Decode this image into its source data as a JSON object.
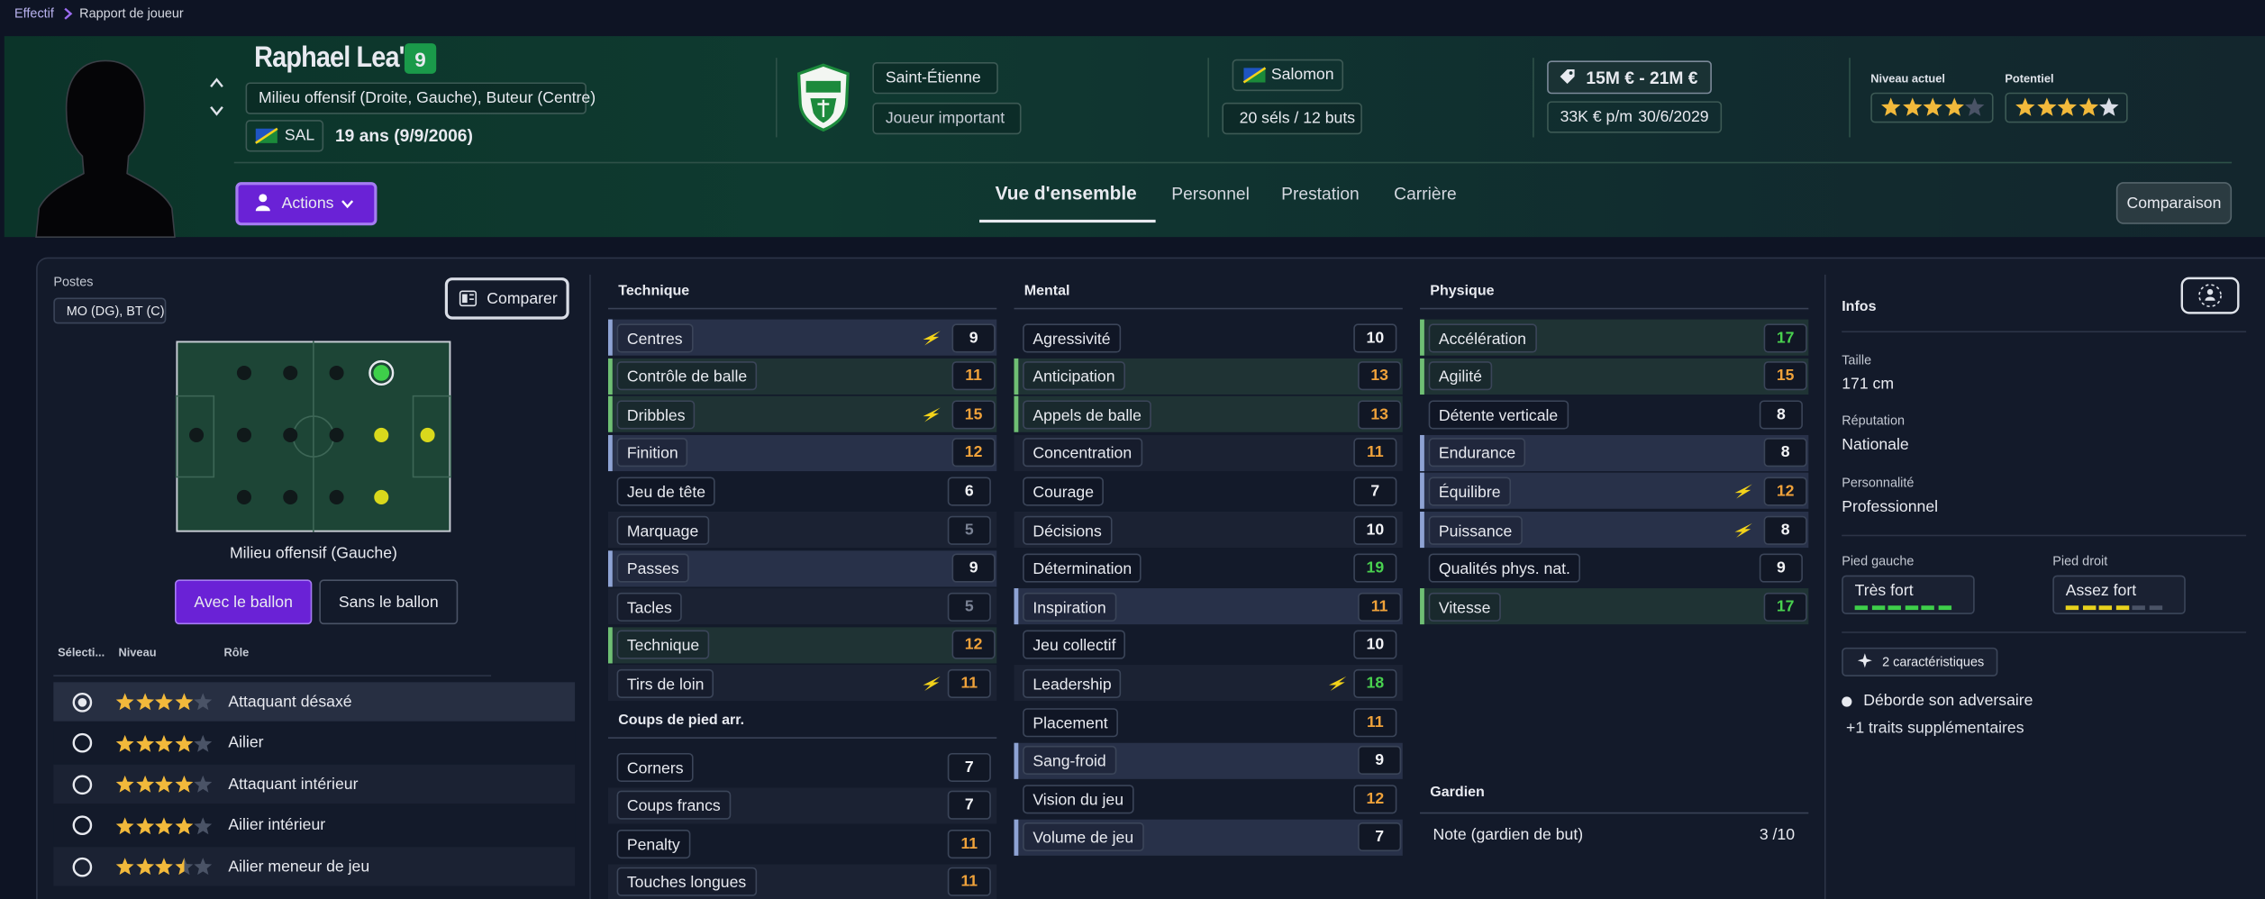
{
  "breadcrumb": [
    "Effectif",
    "Rapport de joueur"
  ],
  "header": {
    "name": "Raphael Lea'i",
    "number": 9,
    "positions": "Milieu offensif (Droite, Gauche), Buteur (Centre)",
    "nationality_code": "SAL",
    "age": "19 ans (9/9/2006)",
    "club": "Saint-Étienne",
    "squad_status": "Joueur important",
    "country": "Salomon",
    "international": "20 séls / 12 buts",
    "value": "15M € - 21M €",
    "wage": "33K € p/m",
    "contract": "30/6/2029",
    "current_level_label": "Niveau actuel",
    "current_level": 4,
    "potential_label": "Potentiel",
    "potential": 4,
    "potential_max": 5
  },
  "actions": "Actions",
  "tabs": [
    "Vue d'ensemble",
    "Personnel",
    "Prestation",
    "Carrière"
  ],
  "comparison": "Comparaison",
  "positions_panel": {
    "label": "Postes",
    "code": "MO (DG), BT (C)",
    "compare": "Comparer",
    "pitch_caption": "Milieu offensif (Gauche)",
    "toggles": [
      "Avec le ballon",
      "Sans le ballon"
    ],
    "columns": [
      "Sélecti...",
      "Niveau",
      "Rôle"
    ],
    "roles": [
      {
        "name": "Attaquant désaxé",
        "stars": 4,
        "selected": true
      },
      {
        "name": "Ailier",
        "stars": 4,
        "selected": false
      },
      {
        "name": "Attaquant intérieur",
        "stars": 4,
        "selected": false
      },
      {
        "name": "Ailier intérieur",
        "stars": 4,
        "selected": false
      },
      {
        "name": "Ailier meneur de jeu",
        "stars": 3.5,
        "selected": false
      }
    ]
  },
  "attributes": [
    {
      "title": "Technique",
      "items": [
        {
          "name": "Centres",
          "value": 9,
          "highlight": "blue",
          "flair": true
        },
        {
          "name": "Contrôle de balle",
          "value": 11,
          "highlight": "green",
          "flair": false
        },
        {
          "name": "Dribbles",
          "value": 15,
          "highlight": "green",
          "flair": true
        },
        {
          "name": "Finition",
          "value": 12,
          "highlight": "blue",
          "flair": false
        },
        {
          "name": "Jeu de tête",
          "value": 6,
          "highlight": "none",
          "flair": false
        },
        {
          "name": "Marquage",
          "value": 5,
          "highlight": "none",
          "flair": false
        },
        {
          "name": "Passes",
          "value": 9,
          "highlight": "blue",
          "flair": false
        },
        {
          "name": "Tacles",
          "value": 5,
          "highlight": "none",
          "flair": false
        },
        {
          "name": "Technique",
          "value": 12,
          "highlight": "green",
          "flair": false
        },
        {
          "name": "Tirs de loin",
          "value": 11,
          "highlight": "none",
          "flair": true
        }
      ]
    },
    {
      "title": "Coups de pied arr.",
      "items": [
        {
          "name": "Corners",
          "value": 7,
          "highlight": "none",
          "flair": false
        },
        {
          "name": "Coups francs",
          "value": 7,
          "highlight": "none",
          "flair": false
        },
        {
          "name": "Penalty",
          "value": 11,
          "highlight": "none",
          "flair": false
        },
        {
          "name": "Touches longues",
          "value": 11,
          "highlight": "none",
          "flair": false
        }
      ]
    },
    {
      "title": "Mental",
      "items": [
        {
          "name": "Agressivité",
          "value": 10,
          "highlight": "none",
          "flair": false
        },
        {
          "name": "Anticipation",
          "value": 13,
          "highlight": "green",
          "flair": false
        },
        {
          "name": "Appels de balle",
          "value": 13,
          "highlight": "green",
          "flair": false
        },
        {
          "name": "Concentration",
          "value": 11,
          "highlight": "none",
          "flair": false
        },
        {
          "name": "Courage",
          "value": 7,
          "highlight": "none",
          "flair": false
        },
        {
          "name": "Décisions",
          "value": 10,
          "highlight": "none",
          "flair": false
        },
        {
          "name": "Détermination",
          "value": 19,
          "highlight": "none",
          "flair": false
        },
        {
          "name": "Inspiration",
          "value": 11,
          "highlight": "blue",
          "flair": false
        },
        {
          "name": "Jeu collectif",
          "value": 10,
          "highlight": "none",
          "flair": false
        },
        {
          "name": "Leadership",
          "value": 18,
          "highlight": "none",
          "flair": true
        },
        {
          "name": "Placement",
          "value": 11,
          "highlight": "none",
          "flair": false
        },
        {
          "name": "Sang-froid",
          "value": 9,
          "highlight": "blue",
          "flair": false
        },
        {
          "name": "Vision du jeu",
          "value": 12,
          "highlight": "none",
          "flair": false
        },
        {
          "name": "Volume de jeu",
          "value": 7,
          "highlight": "blue",
          "flair": false
        }
      ]
    },
    {
      "title": "Physique",
      "items": [
        {
          "name": "Accélération",
          "value": 17,
          "highlight": "green",
          "flair": false
        },
        {
          "name": "Agilité",
          "value": 15,
          "highlight": "green",
          "flair": false
        },
        {
          "name": "Détente verticale",
          "value": 8,
          "highlight": "none",
          "flair": false
        },
        {
          "name": "Endurance",
          "value": 8,
          "highlight": "blue",
          "flair": false
        },
        {
          "name": "Équilibre",
          "value": 12,
          "highlight": "blue",
          "flair": true
        },
        {
          "name": "Puissance",
          "value": 8,
          "highlight": "blue",
          "flair": true
        },
        {
          "name": "Qualités phys. nat.",
          "value": 9,
          "highlight": "none",
          "flair": false
        },
        {
          "name": "Vitesse",
          "value": 17,
          "highlight": "green",
          "flair": false
        }
      ]
    }
  ],
  "goalkeeper": {
    "title": "Gardien",
    "items": [
      {
        "name": "Note (gardien de but)",
        "value": "3 /10"
      }
    ]
  },
  "infos": {
    "title": "Infos",
    "fields": [
      {
        "label": "Taille",
        "value": "171 cm"
      },
      {
        "label": "Réputation",
        "value": "Nationale"
      },
      {
        "label": "Personnalité",
        "value": "Professionnel"
      }
    ],
    "feet": [
      {
        "label": "Pied gauche",
        "value": "Très fort",
        "level": 6,
        "segments": 6,
        "color": "#3ecf4a"
      },
      {
        "label": "Pied droit",
        "value": "Assez fort",
        "level": 4,
        "segments": 6,
        "color": "#e8d21c"
      }
    ],
    "traits_chip": "2 caractéristiques",
    "traits": [
      "Déborde son adversaire"
    ],
    "more_traits": "+1 traits supplémentaires"
  }
}
